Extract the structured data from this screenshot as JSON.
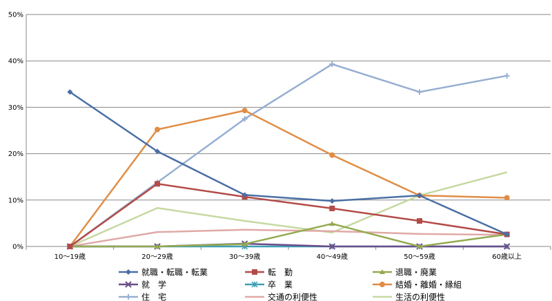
{
  "chart_data": {
    "type": "line",
    "categories": [
      "10～19歳",
      "20～29歳",
      "30～39歳",
      "40～49歳",
      "50～59歳",
      "60歳以上"
    ],
    "ylim": [
      0,
      50
    ],
    "yticks": [
      "0%",
      "10%",
      "20%",
      "30%",
      "40%",
      "50%"
    ],
    "grid": true,
    "legend_position": "bottom",
    "series": [
      {
        "name": "就職・転職・転業",
        "color": "#4a6fa5",
        "marker": "diamond",
        "values": [
          33.3,
          20.5,
          11.1,
          9.8,
          11.0,
          2.6
        ]
      },
      {
        "name": "転　勤",
        "color": "#b34b48",
        "marker": "square",
        "values": [
          0,
          13.5,
          10.7,
          8.2,
          5.5,
          2.6
        ]
      },
      {
        "name": "退職・廃業",
        "color": "#93aa4f",
        "marker": "triangle",
        "values": [
          0,
          0,
          0.5,
          4.9,
          0,
          2.6
        ]
      },
      {
        "name": "就　学",
        "color": "#6b4d8a",
        "marker": "x",
        "values": [
          0,
          0,
          0.6,
          0,
          0,
          0
        ]
      },
      {
        "name": "卒　業",
        "color": "#3d9fb5",
        "marker": "star",
        "values": [
          0,
          0,
          0,
          0,
          0,
          0
        ]
      },
      {
        "name": "結婚・離婚・縁組",
        "color": "#e08d45",
        "marker": "circle",
        "values": [
          0,
          25.2,
          29.3,
          19.7,
          11.0,
          10.5
        ]
      },
      {
        "name": "住　宅",
        "color": "#96aed1",
        "marker": "plus",
        "values": [
          0,
          13.8,
          27.5,
          39.3,
          33.3,
          36.8
        ]
      },
      {
        "name": "交通の利便性",
        "color": "#e0a9a6",
        "marker": "none",
        "values": [
          0,
          3.1,
          3.6,
          3.3,
          2.7,
          2.5
        ]
      },
      {
        "name": "生活の利便性",
        "color": "#c6d9a1",
        "marker": "none",
        "values": [
          0,
          8.3,
          5.5,
          3.0,
          11.0,
          16.0
        ]
      }
    ]
  }
}
